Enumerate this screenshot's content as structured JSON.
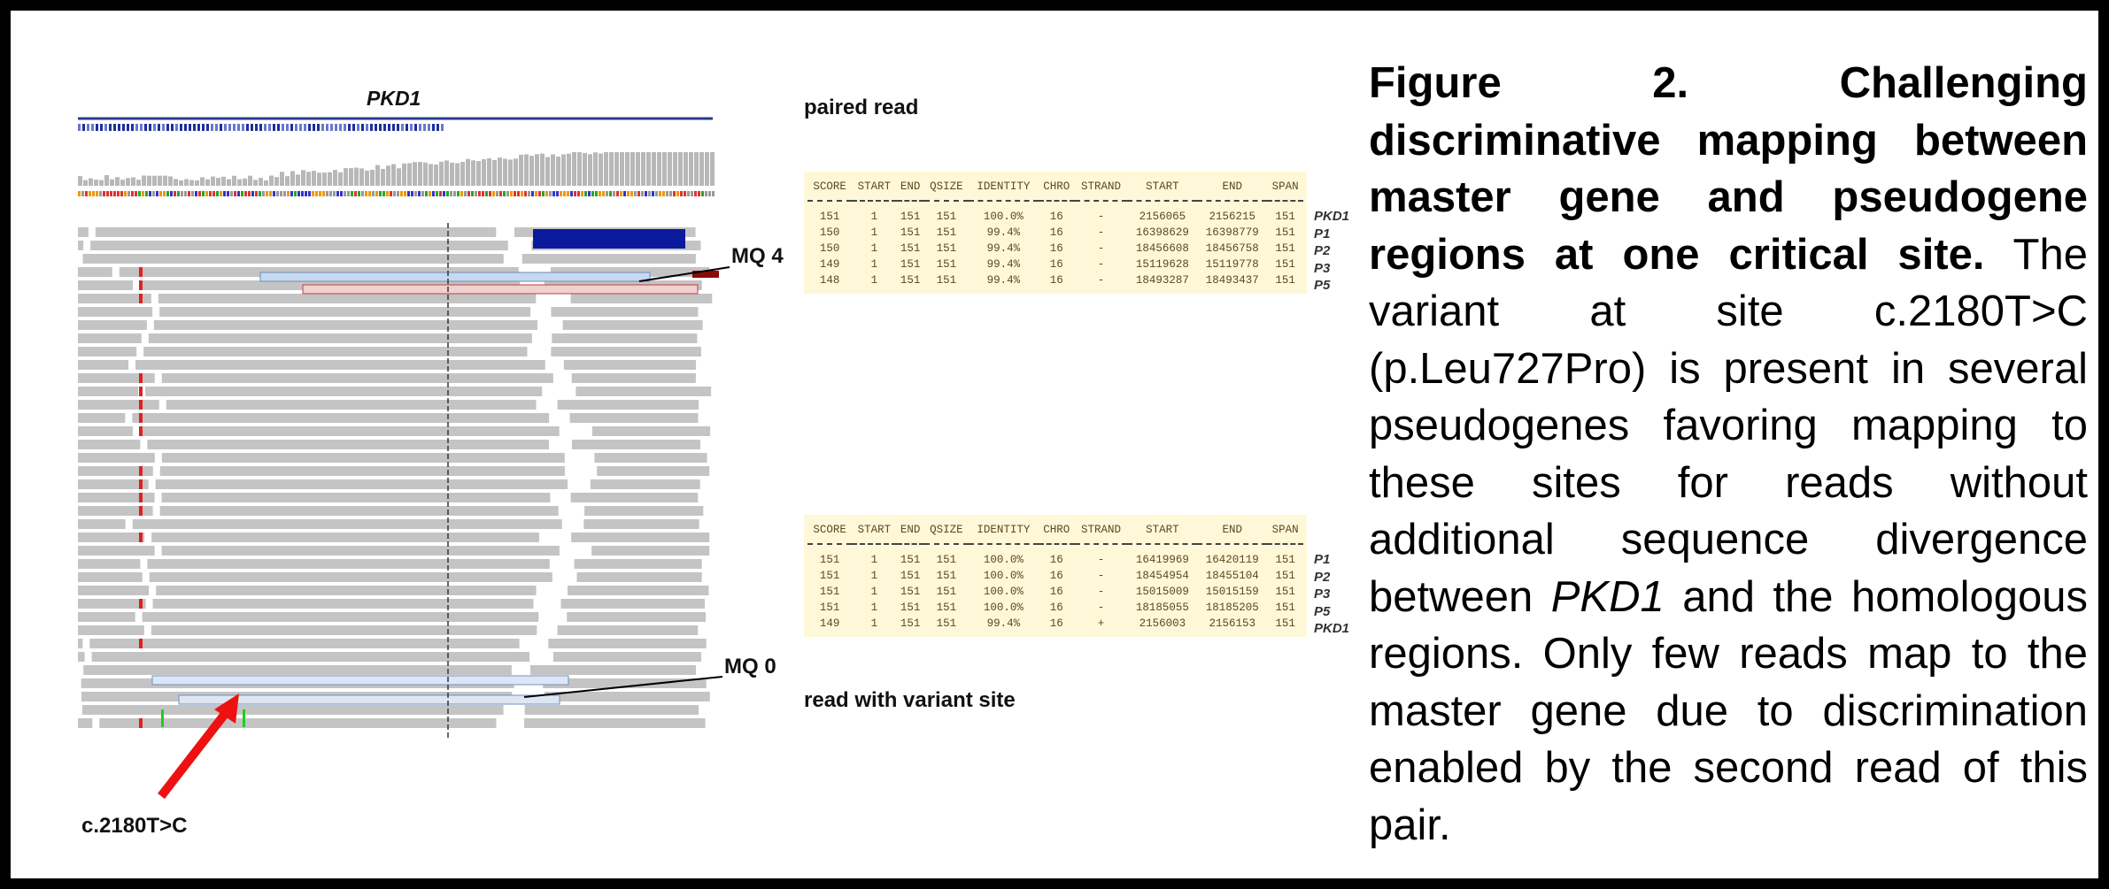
{
  "figure": {
    "gene_label": "PKD1",
    "mq_high_label": "MQ 4",
    "mq_low_label": "MQ 0",
    "variant_label": "c.2180T>C",
    "tables": [
      {
        "title": "paired read",
        "header": [
          "SCORE",
          "START",
          "END",
          "QSIZE",
          "IDENTITY",
          "CHRO",
          "STRAND",
          "START",
          "END",
          "SPAN"
        ],
        "rows": [
          {
            "label": "PKD1",
            "cells": [
              "151",
              "1",
              "151",
              "151",
              "100.0%",
              "16",
              "-",
              "2156065",
              "2156215",
              "151"
            ]
          },
          {
            "label": "P1",
            "cells": [
              "150",
              "1",
              "151",
              "151",
              "99.4%",
              "16",
              "-",
              "16398629",
              "16398779",
              "151"
            ]
          },
          {
            "label": "P2",
            "cells": [
              "150",
              "1",
              "151",
              "151",
              "99.4%",
              "16",
              "-",
              "18456608",
              "18456758",
              "151"
            ]
          },
          {
            "label": "P3",
            "cells": [
              "149",
              "1",
              "151",
              "151",
              "99.4%",
              "16",
              "-",
              "15119628",
              "15119778",
              "151"
            ]
          },
          {
            "label": "P5",
            "cells": [
              "148",
              "1",
              "151",
              "151",
              "99.4%",
              "16",
              "-",
              "18493287",
              "18493437",
              "151"
            ]
          }
        ]
      },
      {
        "title": "read with variant site",
        "header": [
          "SCORE",
          "START",
          "END",
          "QSIZE",
          "IDENTITY",
          "CHRO",
          "STRAND",
          "START",
          "END",
          "SPAN"
        ],
        "rows": [
          {
            "label": "P1",
            "cells": [
              "151",
              "1",
              "151",
              "151",
              "100.0%",
              "16",
              "-",
              "16419969",
              "16420119",
              "151"
            ]
          },
          {
            "label": "P2",
            "cells": [
              "151",
              "1",
              "151",
              "151",
              "100.0%",
              "16",
              "-",
              "18454954",
              "18455104",
              "151"
            ]
          },
          {
            "label": "P3",
            "cells": [
              "151",
              "1",
              "151",
              "151",
              "100.0%",
              "16",
              "-",
              "15015009",
              "15015159",
              "151"
            ]
          },
          {
            "label": "P5",
            "cells": [
              "151",
              "1",
              "151",
              "151",
              "100.0%",
              "16",
              "-",
              "18185055",
              "18185205",
              "151"
            ]
          },
          {
            "label": "PKD1",
            "cells": [
              "149",
              "1",
              "151",
              "151",
              "99.4%",
              "16",
              "+",
              "2156003",
              "2156153",
              "151"
            ]
          }
        ]
      }
    ],
    "caption": {
      "bold": "Figure 2. Challenging discriminative mapping between master gene and pseudogene regions at one critical site.",
      "text1": " The variant at site c.2180T>C (p.Leu727Pro) is present in several pseudogenes favoring mapping to these sites for reads without additional sequence divergence between ",
      "italic": "PKD1",
      "text2": " and the homologous regions. Only few reads map to the master gene due to discrimination enabled by the second read of this pair."
    }
  }
}
